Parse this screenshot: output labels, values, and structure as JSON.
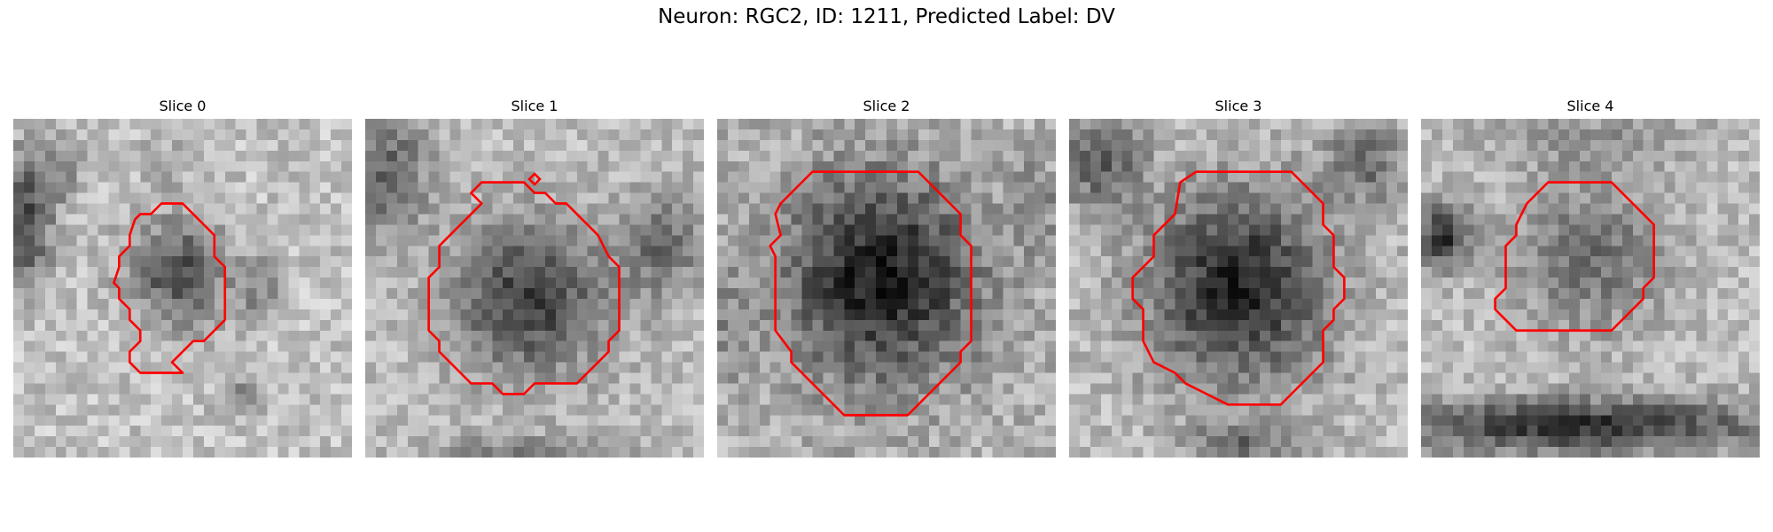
{
  "figure": {
    "title": "Neuron: RGC2, ID: 1211, Predicted Label: DV"
  },
  "outline_color": "#ff0000",
  "colormap": "grayscale",
  "slices": [
    {
      "title": "Slice 0"
    },
    {
      "title": "Slice 1"
    },
    {
      "title": "Slice 2"
    },
    {
      "title": "Slice 3"
    },
    {
      "title": "Slice 4"
    }
  ]
}
